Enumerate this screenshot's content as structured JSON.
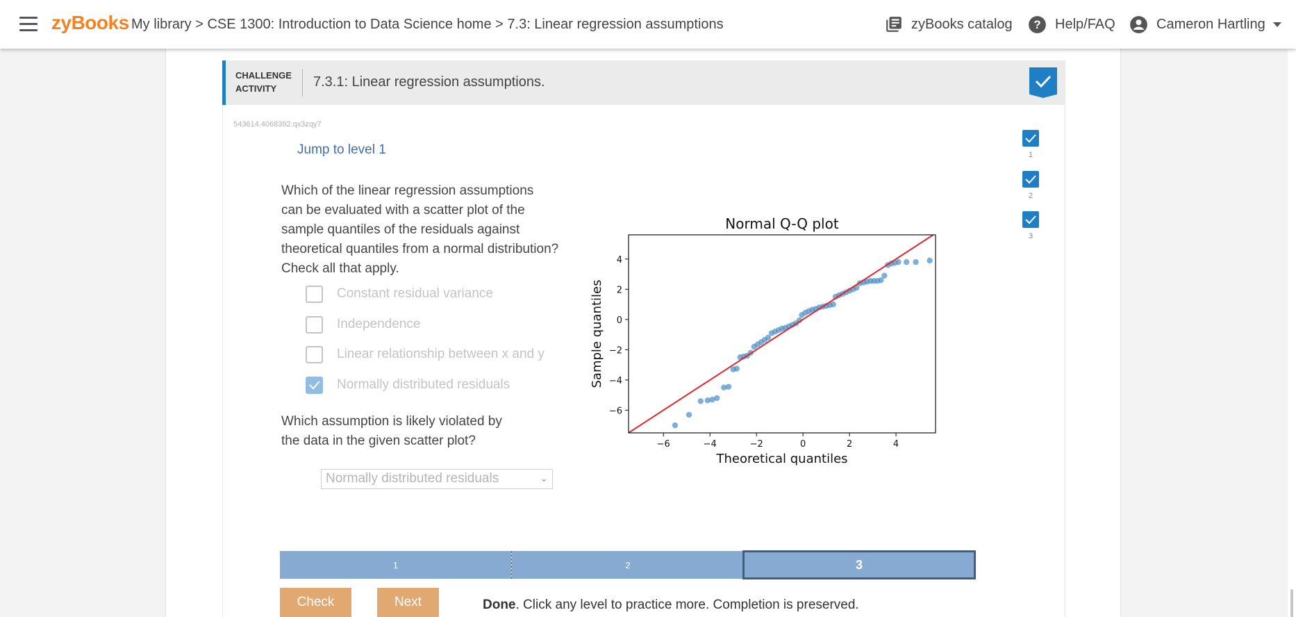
{
  "header": {
    "brand": "zyBooks",
    "breadcrumb": "My library > CSE 1300: Introduction to Data Science home > 7.3: Linear regression assumptions",
    "catalog": "zyBooks catalog",
    "help": "Help/FAQ",
    "user": "Cameron Hartling"
  },
  "activity": {
    "type_line1": "CHALLENGE",
    "type_line2": "ACTIVITY",
    "title": "7.3.1: Linear regression assumptions.",
    "code_id": "543614.4068392.qx3zqy7",
    "jump": "Jump to level 1",
    "question1": [
      "Which of the linear regression assumptions",
      "can be evaluated with a scatter plot of the",
      "sample quantiles of the residuals against",
      "theoretical quantiles from a normal distribution?",
      "Check all that apply."
    ],
    "options": [
      {
        "label": "Constant residual variance",
        "checked": false
      },
      {
        "label": "Independence",
        "checked": false
      },
      {
        "label": "Linear relationship between x and y",
        "checked": false
      },
      {
        "label": "Normally distributed residuals",
        "checked": true
      }
    ],
    "question2": [
      "Which assumption is likely violated by",
      "the data in the given scatter plot?"
    ],
    "select_value": "Normally distributed residuals",
    "levels": [
      "1",
      "2",
      "3"
    ],
    "progress": {
      "segments": [
        "1",
        "2",
        "3"
      ],
      "current": "3"
    },
    "check_label": "Check",
    "next_label": "Next",
    "done_bold": "Done",
    "done_rest": ". Click any level to practice more. Completion is preserved."
  },
  "chart_data": {
    "type": "scatter",
    "title": "Normal Q-Q plot",
    "xlabel": "Theoretical quantiles",
    "ylabel": "Sample quantiles",
    "xlim": [
      -7.5,
      5.7
    ],
    "ylim": [
      -7.5,
      5.6
    ],
    "xticks": [
      -6,
      -4,
      -2,
      0,
      2,
      4
    ],
    "yticks": [
      -6,
      -4,
      -2,
      0,
      2,
      4
    ],
    "point_color": "#4e8fc6",
    "line_color": "#e3262b",
    "reference_line": [
      [
        -7.5,
        -7.5
      ],
      [
        5.6,
        5.6
      ]
    ],
    "points": [
      [
        -5.5,
        -7.0
      ],
      [
        -4.9,
        -6.3
      ],
      [
        -4.4,
        -5.4
      ],
      [
        -4.1,
        -5.35
      ],
      [
        -3.9,
        -5.3
      ],
      [
        -3.7,
        -5.2
      ],
      [
        -3.4,
        -4.5
      ],
      [
        -3.2,
        -4.45
      ],
      [
        -3.0,
        -3.3
      ],
      [
        -2.85,
        -3.25
      ],
      [
        -2.7,
        -2.5
      ],
      [
        -2.55,
        -2.45
      ],
      [
        -2.4,
        -2.4
      ],
      [
        -2.25,
        -2.2
      ],
      [
        -2.1,
        -1.8
      ],
      [
        -1.95,
        -1.65
      ],
      [
        -1.8,
        -1.5
      ],
      [
        -1.65,
        -1.35
      ],
      [
        -1.5,
        -1.2
      ],
      [
        -1.35,
        -0.9
      ],
      [
        -1.2,
        -0.8
      ],
      [
        -1.05,
        -0.7
      ],
      [
        -0.9,
        -0.6
      ],
      [
        -0.75,
        -0.55
      ],
      [
        -0.6,
        -0.45
      ],
      [
        -0.45,
        -0.35
      ],
      [
        -0.3,
        -0.25
      ],
      [
        -0.15,
        -0.05
      ],
      [
        -0.05,
        0.3
      ],
      [
        0.1,
        0.45
      ],
      [
        0.25,
        0.55
      ],
      [
        0.4,
        0.65
      ],
      [
        0.55,
        0.7
      ],
      [
        0.7,
        0.8
      ],
      [
        0.85,
        0.85
      ],
      [
        1.0,
        0.9
      ],
      [
        1.15,
        0.95
      ],
      [
        1.3,
        1.0
      ],
      [
        1.4,
        1.5
      ],
      [
        1.55,
        1.6
      ],
      [
        1.7,
        1.7
      ],
      [
        1.85,
        1.8
      ],
      [
        2.0,
        1.9
      ],
      [
        2.15,
        2.0
      ],
      [
        2.3,
        2.1
      ],
      [
        2.45,
        2.4
      ],
      [
        2.6,
        2.45
      ],
      [
        2.75,
        2.5
      ],
      [
        2.9,
        2.55
      ],
      [
        3.05,
        2.55
      ],
      [
        3.2,
        2.55
      ],
      [
        3.35,
        2.6
      ],
      [
        3.5,
        2.9
      ],
      [
        3.65,
        3.6
      ],
      [
        3.8,
        3.7
      ],
      [
        3.95,
        3.75
      ],
      [
        4.1,
        3.8
      ],
      [
        4.45,
        3.8
      ],
      [
        4.85,
        3.8
      ],
      [
        5.45,
        3.9
      ]
    ]
  }
}
